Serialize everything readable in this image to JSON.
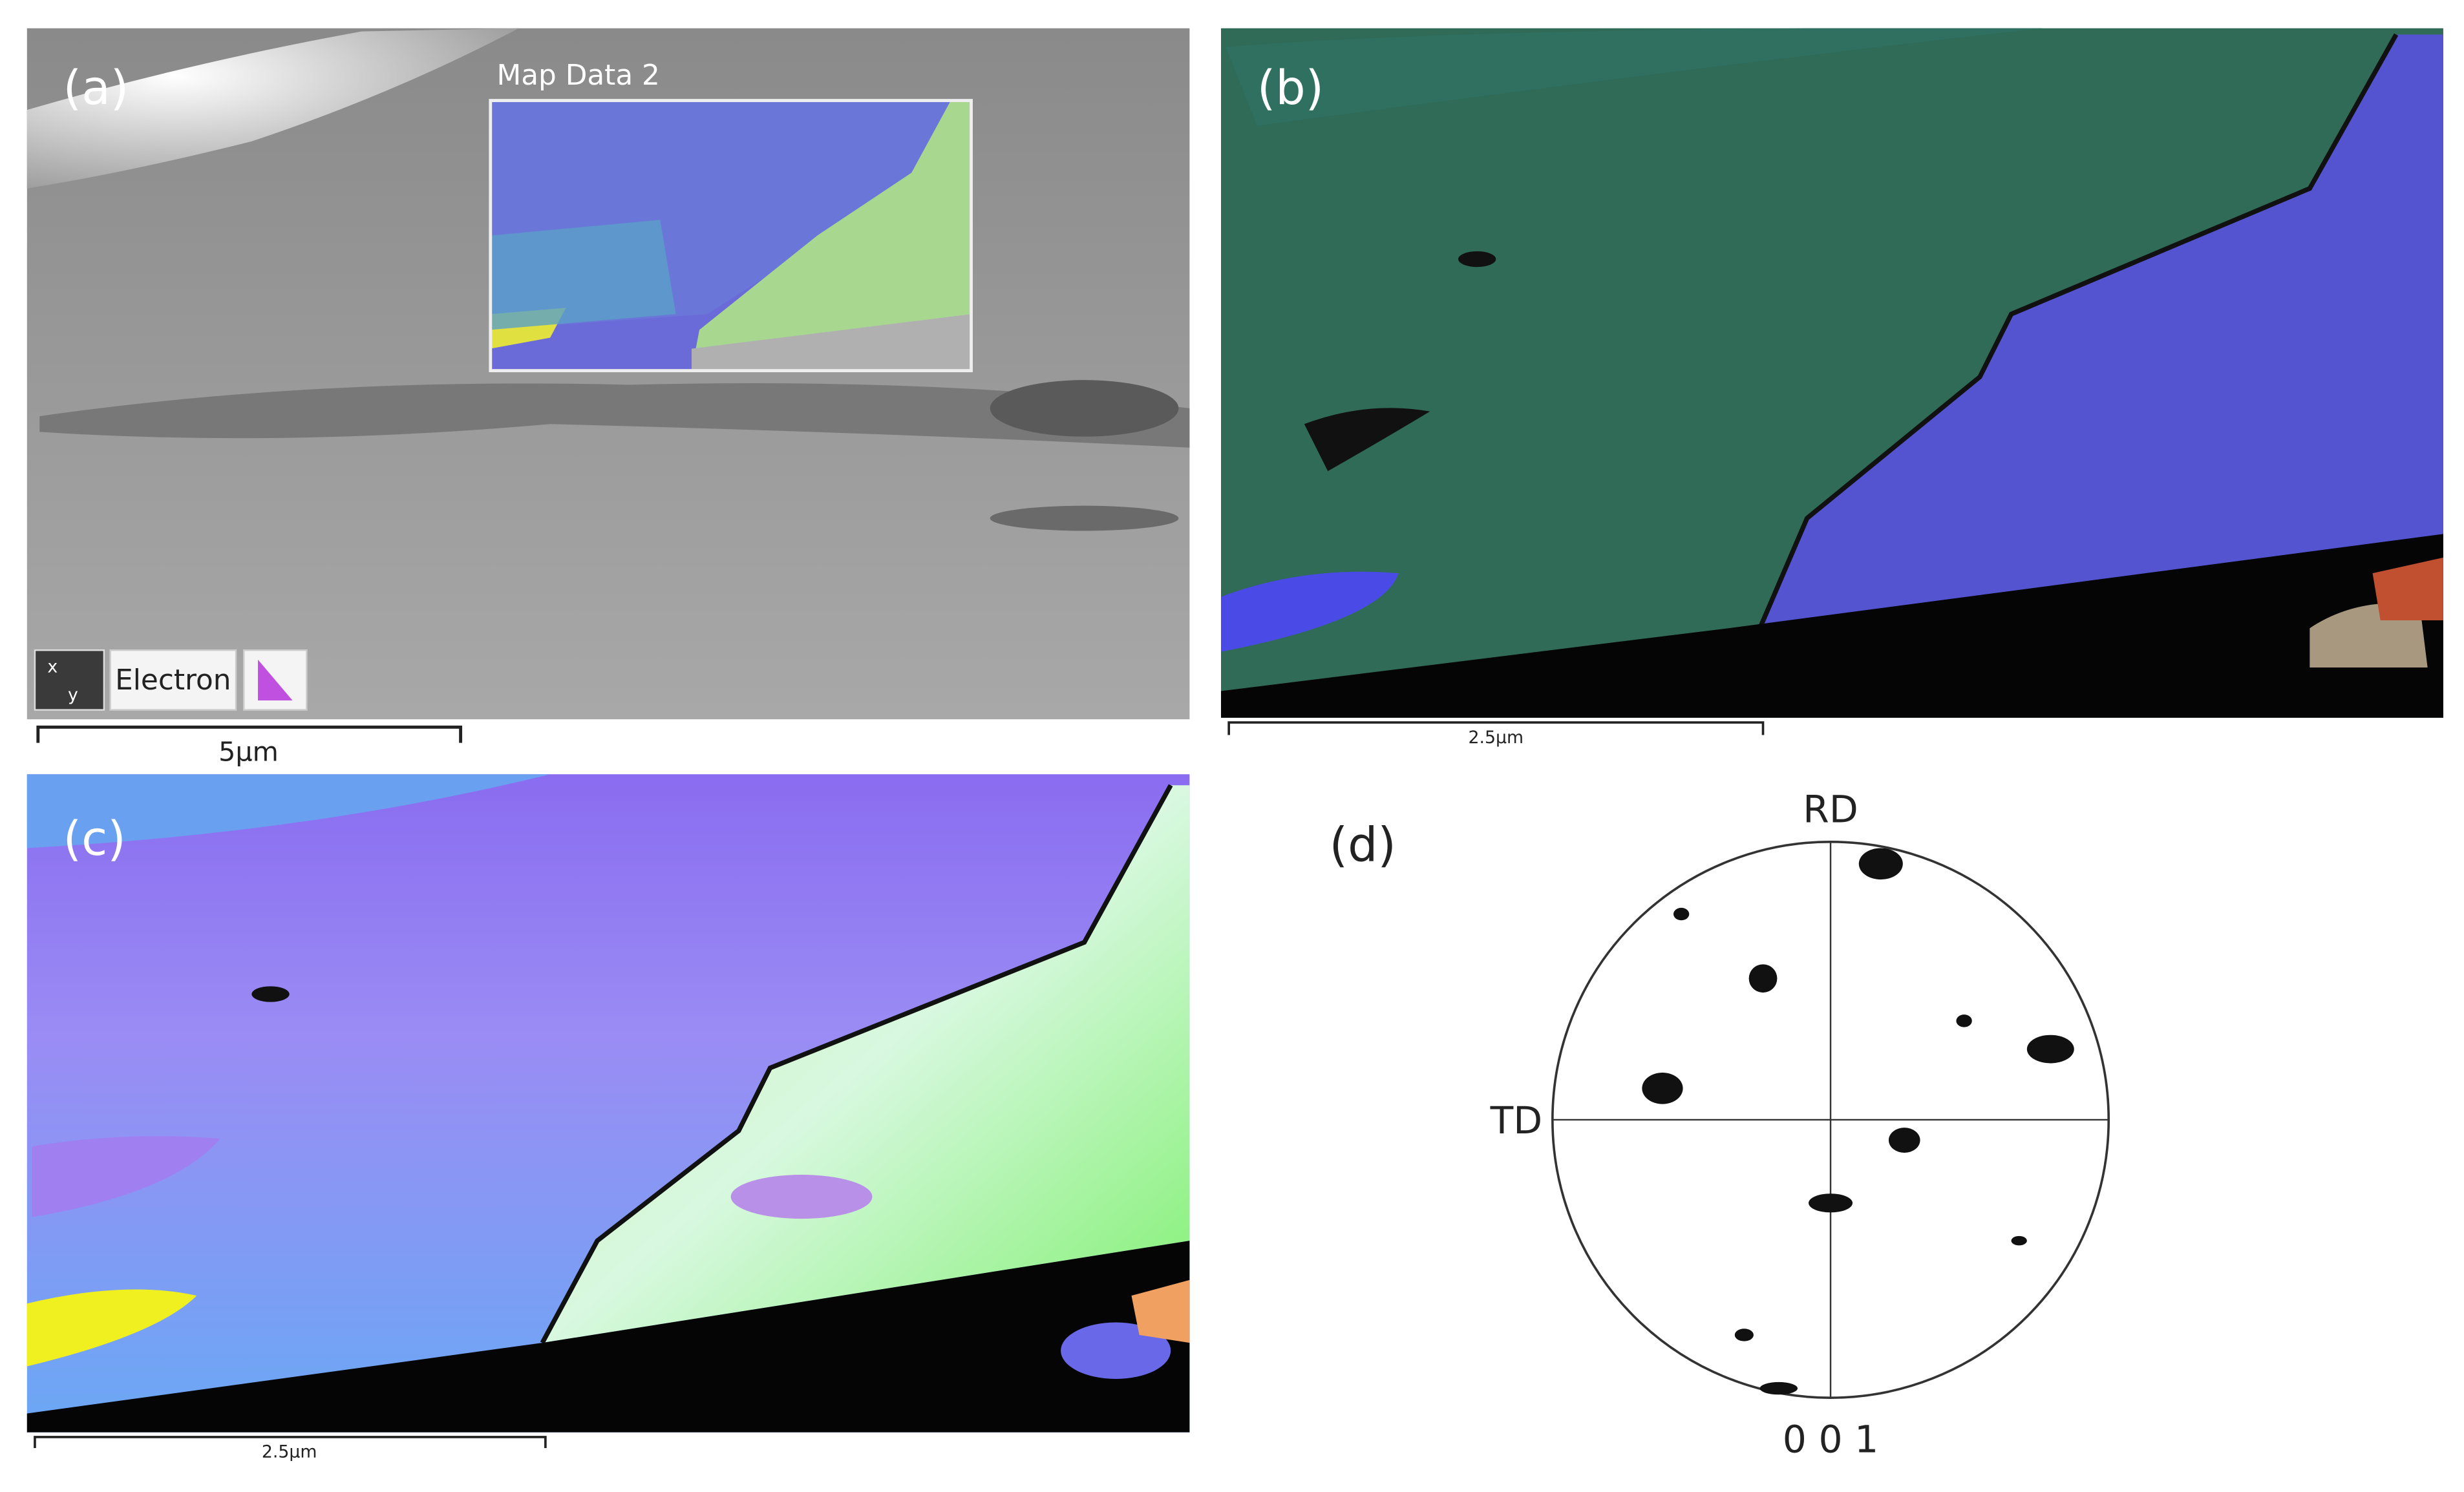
{
  "panels": [
    {
      "label": "(a)",
      "overlay_title": "Map Data 2",
      "toolbar": {
        "axis_x": "x",
        "axis_y": "y",
        "button": "Electron"
      },
      "scale_bar": "5µm"
    },
    {
      "label": "(b)",
      "scale_bar": "2.5µm"
    },
    {
      "label": "(c)",
      "scale_bar": "2.5µm"
    },
    {
      "label": "(d)",
      "pole_figure": {
        "top": "RD",
        "left": "TD",
        "plane": "0 0 1"
      }
    }
  ]
}
